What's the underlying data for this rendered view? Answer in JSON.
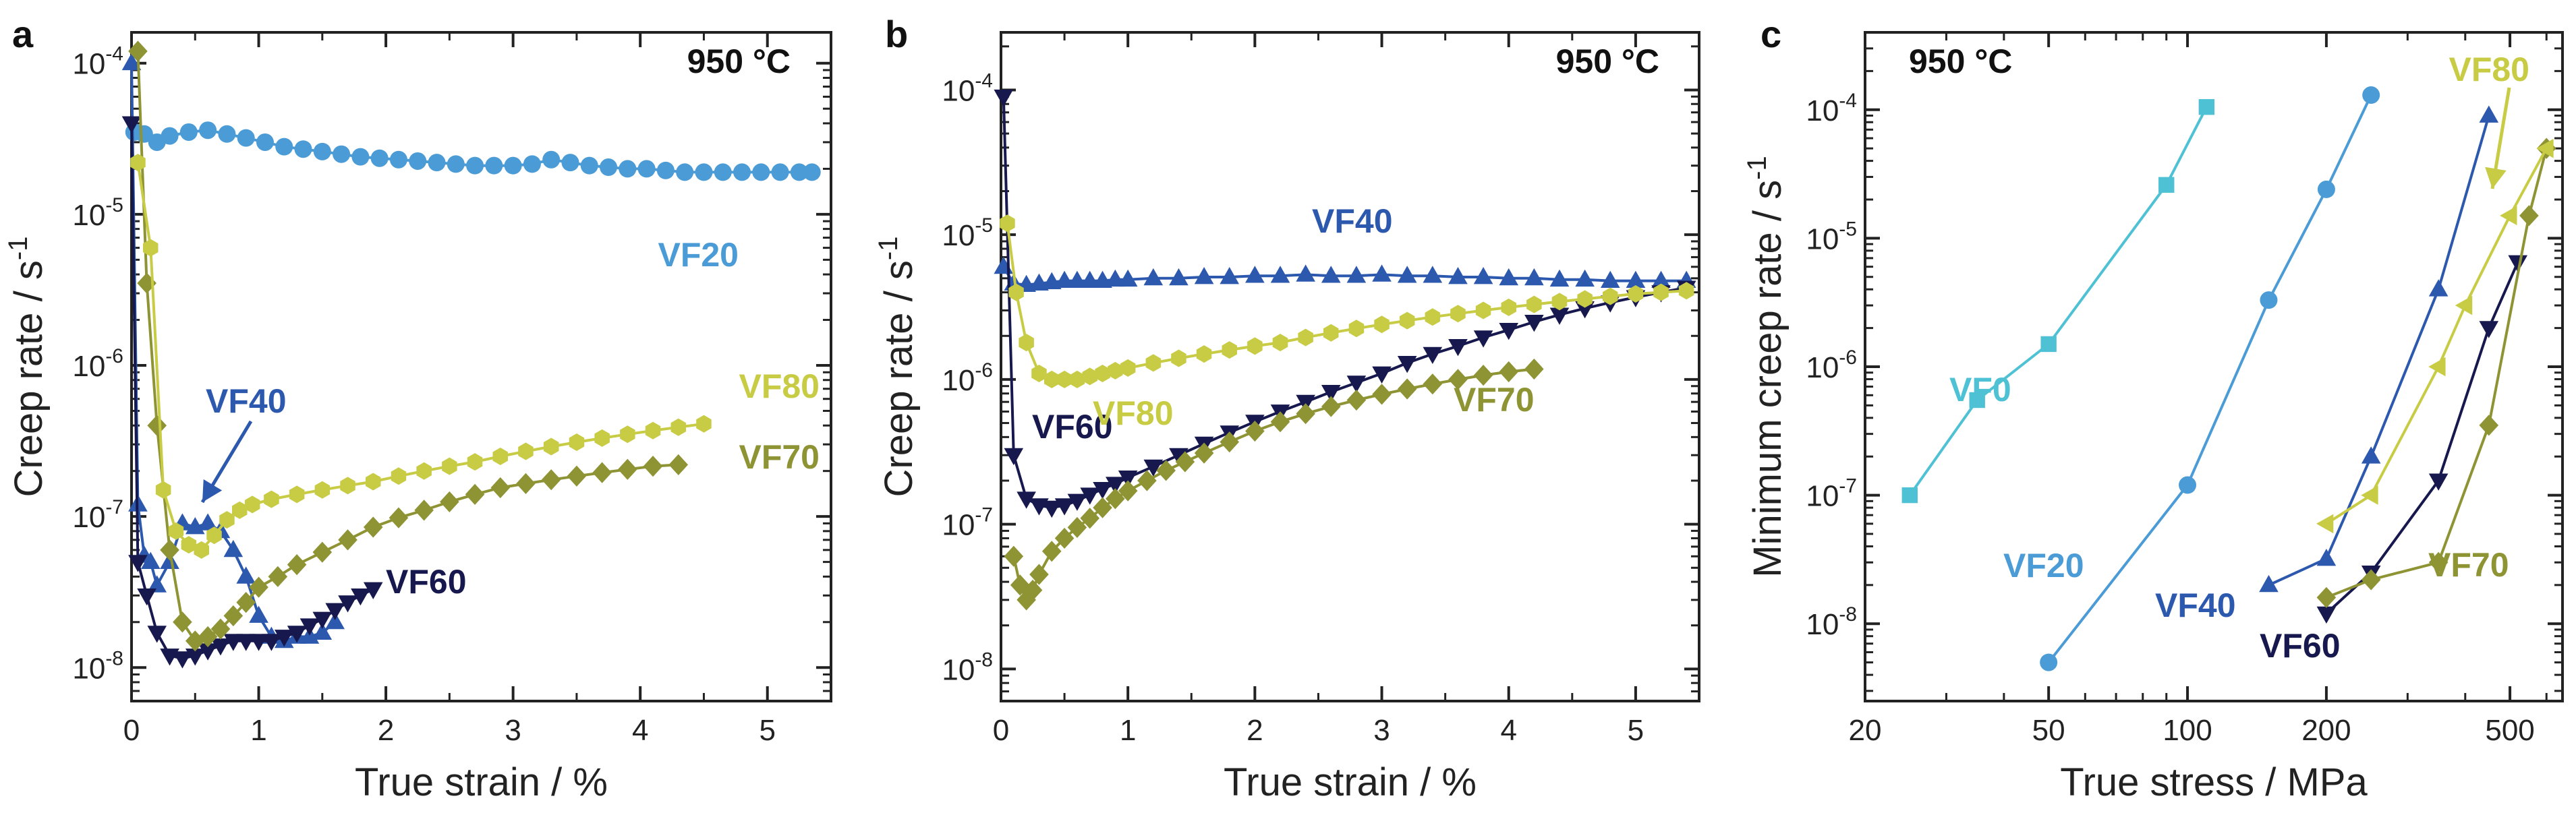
{
  "figure": {
    "panels": [
      "a",
      "b",
      "c"
    ],
    "temperature": "950 °C"
  },
  "colors": {
    "VF0": "#4FC1D4",
    "VF20": "#4A9BD6",
    "VF40": "#2C58AE",
    "VF60": "#17184E",
    "VF70": "#8E9333",
    "VF80": "#C8CB44"
  },
  "chart_data": [
    {
      "panel": "a",
      "type": "scatter",
      "annotation": "950 °C",
      "xlabel": "True strain / %",
      "ylabel": "Creep rate / s-1",
      "xlim": [
        0,
        5.5
      ],
      "ylim": [
        6e-09,
        0.00016
      ],
      "yscale": "log",
      "xticks": [
        "0",
        "1",
        "2",
        "3",
        "4",
        "5"
      ],
      "yticks": [
        "10-8",
        "10-7",
        "10-6",
        "10-5",
        "10-4"
      ],
      "series": [
        {
          "name": "VF20",
          "marker": "circle",
          "x": [
            0.02,
            0.1,
            0.2,
            0.3,
            0.45,
            0.6,
            0.75,
            0.9,
            1.05,
            1.2,
            1.35,
            1.5,
            1.65,
            1.8,
            1.95,
            2.1,
            2.25,
            2.4,
            2.55,
            2.7,
            2.85,
            3.0,
            3.15,
            3.3,
            3.45,
            3.6,
            3.75,
            3.9,
            4.05,
            4.2,
            4.35,
            4.5,
            4.65,
            4.8,
            4.95,
            5.1,
            5.25,
            5.35
          ],
          "y": [
            3.5e-05,
            3.4e-05,
            3e-05,
            3.3e-05,
            3.5e-05,
            3.6e-05,
            3.4e-05,
            3.2e-05,
            3e-05,
            2.8e-05,
            2.7e-05,
            2.6e-05,
            2.5e-05,
            2.4e-05,
            2.35e-05,
            2.3e-05,
            2.25e-05,
            2.2e-05,
            2.15e-05,
            2.1e-05,
            2.1e-05,
            2.1e-05,
            2.15e-05,
            2.3e-05,
            2.2e-05,
            2.1e-05,
            2.05e-05,
            2e-05,
            2e-05,
            1.95e-05,
            1.9e-05,
            1.9e-05,
            1.9e-05,
            1.9e-05,
            1.9e-05,
            1.9e-05,
            1.9e-05,
            1.9e-05
          ]
        },
        {
          "name": "VF40",
          "marker": "triangle-up",
          "x": [
            0.0,
            0.05,
            0.1,
            0.15,
            0.2,
            0.3,
            0.4,
            0.5,
            0.6,
            0.7,
            0.8,
            0.9,
            1.0,
            1.1,
            1.2,
            1.3,
            1.4,
            1.5,
            1.6
          ],
          "y": [
            0.0001,
            1.2e-07,
            5.5e-08,
            5e-08,
            3.5e-08,
            5e-08,
            9e-08,
            8.5e-08,
            9e-08,
            8e-08,
            6e-08,
            4e-08,
            2.2e-08,
            1.6e-08,
            1.5e-08,
            1.6e-08,
            1.6e-08,
            1.7e-08,
            2e-08
          ]
        },
        {
          "name": "VF60",
          "marker": "triangle-down",
          "x": [
            0.0,
            0.05,
            0.12,
            0.2,
            0.3,
            0.4,
            0.5,
            0.6,
            0.7,
            0.8,
            0.9,
            1.0,
            1.1,
            1.2,
            1.3,
            1.4,
            1.5,
            1.6,
            1.7,
            1.8,
            1.9
          ],
          "y": [
            4e-05,
            5e-08,
            3e-08,
            1.7e-08,
            1.2e-08,
            1.15e-08,
            1.2e-08,
            1.3e-08,
            1.4e-08,
            1.5e-08,
            1.5e-08,
            1.5e-08,
            1.5e-08,
            1.6e-08,
            1.7e-08,
            1.9e-08,
            2.1e-08,
            2.4e-08,
            2.7e-08,
            3e-08,
            3.3e-08
          ]
        },
        {
          "name": "VF70",
          "marker": "diamond",
          "x": [
            0.05,
            0.12,
            0.2,
            0.3,
            0.4,
            0.5,
            0.6,
            0.7,
            0.8,
            0.9,
            1.0,
            1.15,
            1.3,
            1.5,
            1.7,
            1.9,
            2.1,
            2.3,
            2.5,
            2.7,
            2.9,
            3.1,
            3.3,
            3.5,
            3.7,
            3.9,
            4.1,
            4.3
          ],
          "y": [
            0.00012,
            3.5e-06,
            4e-07,
            6e-08,
            2e-08,
            1.5e-08,
            1.6e-08,
            1.8e-08,
            2.2e-08,
            2.7e-08,
            3.4e-08,
            4e-08,
            4.8e-08,
            5.8e-08,
            7e-08,
            8.5e-08,
            9.8e-08,
            1.1e-07,
            1.25e-07,
            1.4e-07,
            1.55e-07,
            1.65e-07,
            1.75e-07,
            1.85e-07,
            1.95e-07,
            2.05e-07,
            2.15e-07,
            2.2e-07
          ]
        },
        {
          "name": "VF80",
          "marker": "hexagon",
          "x": [
            0.05,
            0.15,
            0.25,
            0.35,
            0.45,
            0.55,
            0.65,
            0.75,
            0.85,
            0.95,
            1.1,
            1.3,
            1.5,
            1.7,
            1.9,
            2.1,
            2.3,
            2.5,
            2.7,
            2.9,
            3.1,
            3.3,
            3.5,
            3.7,
            3.9,
            4.1,
            4.3,
            4.5
          ],
          "y": [
            2.2e-05,
            6e-06,
            1.5e-07,
            8e-08,
            6.5e-08,
            6e-08,
            7.5e-08,
            9.5e-08,
            1.1e-07,
            1.2e-07,
            1.3e-07,
            1.4e-07,
            1.5e-07,
            1.6e-07,
            1.7e-07,
            1.85e-07,
            2e-07,
            2.15e-07,
            2.3e-07,
            2.5e-07,
            2.7e-07,
            2.9e-07,
            3.1e-07,
            3.3e-07,
            3.5e-07,
            3.7e-07,
            3.9e-07,
            4.1e-07
          ]
        }
      ]
    },
    {
      "panel": "b",
      "type": "scatter",
      "annotation": "950 °C",
      "xlabel": "True strain / %",
      "ylabel": "Creep rate / s-1",
      "xlim": [
        0,
        5.5
      ],
      "ylim": [
        6e-09,
        0.00025
      ],
      "yscale": "log",
      "xticks": [
        "0",
        "1",
        "2",
        "3",
        "4",
        "5"
      ],
      "yticks": [
        "10-8",
        "10-7",
        "10-6",
        "10-5",
        "10-4"
      ],
      "series": [
        {
          "name": "VF40",
          "marker": "triangle-up",
          "x": [
            0.02,
            0.1,
            0.2,
            0.3,
            0.4,
            0.5,
            0.6,
            0.7,
            0.8,
            0.9,
            1.0,
            1.2,
            1.4,
            1.6,
            1.8,
            2.0,
            2.2,
            2.4,
            2.6,
            2.8,
            3.0,
            3.2,
            3.4,
            3.6,
            3.8,
            4.0,
            4.2,
            4.4,
            4.6,
            4.8,
            5.0,
            5.2,
            5.4
          ],
          "y": [
            6e-06,
            4.6e-06,
            4.5e-06,
            4.6e-06,
            4.7e-06,
            4.8e-06,
            4.8e-06,
            4.8e-06,
            4.8e-06,
            4.9e-06,
            4.9e-06,
            5e-06,
            5e-06,
            5.1e-06,
            5.1e-06,
            5.2e-06,
            5.2e-06,
            5.3e-06,
            5.2e-06,
            5.2e-06,
            5.3e-06,
            5.2e-06,
            5.2e-06,
            5.1e-06,
            5.1e-06,
            5e-06,
            5e-06,
            4.9e-06,
            4.9e-06,
            4.8e-06,
            4.8e-06,
            4.8e-06,
            4.8e-06
          ]
        },
        {
          "name": "VF60",
          "marker": "triangle-down",
          "x": [
            0.02,
            0.1,
            0.2,
            0.3,
            0.4,
            0.5,
            0.6,
            0.7,
            0.8,
            0.9,
            1.0,
            1.2,
            1.4,
            1.6,
            1.8,
            2.0,
            2.2,
            2.4,
            2.6,
            2.8,
            3.0,
            3.2,
            3.4,
            3.6,
            3.8,
            4.0,
            4.2,
            4.4,
            4.6,
            4.8,
            5.0,
            5.2,
            5.4
          ],
          "y": [
            9e-05,
            3e-07,
            1.5e-07,
            1.35e-07,
            1.3e-07,
            1.35e-07,
            1.45e-07,
            1.6e-07,
            1.75e-07,
            1.9e-07,
            2.1e-07,
            2.5e-07,
            3e-07,
            3.6e-07,
            4.3e-07,
            5.1e-07,
            6e-07,
            7e-07,
            8.2e-07,
            9.5e-07,
            1.1e-06,
            1.3e-06,
            1.5e-06,
            1.7e-06,
            1.95e-06,
            2.2e-06,
            2.5e-06,
            2.8e-06,
            3.1e-06,
            3.4e-06,
            3.7e-06,
            4e-06,
            4.3e-06
          ]
        },
        {
          "name": "VF70",
          "marker": "diamond",
          "x": [
            0.1,
            0.15,
            0.2,
            0.25,
            0.3,
            0.4,
            0.5,
            0.6,
            0.7,
            0.8,
            0.9,
            1.0,
            1.15,
            1.3,
            1.45,
            1.6,
            1.8,
            2.0,
            2.2,
            2.4,
            2.6,
            2.8,
            3.0,
            3.2,
            3.4,
            3.6,
            3.8,
            4.0,
            4.2
          ],
          "y": [
            6e-08,
            3.8e-08,
            3e-08,
            3.5e-08,
            4.5e-08,
            6.5e-08,
            8e-08,
            9.5e-08,
            1.1e-07,
            1.3e-07,
            1.5e-07,
            1.7e-07,
            2e-07,
            2.35e-07,
            2.7e-07,
            3.1e-07,
            3.7e-07,
            4.4e-07,
            5.1e-07,
            5.8e-07,
            6.5e-07,
            7.2e-07,
            7.9e-07,
            8.6e-07,
            9.3e-07,
            1e-06,
            1.07e-06,
            1.13e-06,
            1.18e-06
          ]
        },
        {
          "name": "VF80",
          "marker": "hexagon",
          "x": [
            0.05,
            0.12,
            0.2,
            0.3,
            0.4,
            0.5,
            0.6,
            0.7,
            0.8,
            0.9,
            1.0,
            1.2,
            1.4,
            1.6,
            1.8,
            2.0,
            2.2,
            2.4,
            2.6,
            2.8,
            3.0,
            3.2,
            3.4,
            3.6,
            3.8,
            4.0,
            4.2,
            4.4,
            4.6,
            4.8,
            5.0,
            5.2,
            5.4
          ],
          "y": [
            1.2e-05,
            4e-06,
            1.8e-06,
            1.1e-06,
            1e-06,
            1e-06,
            1e-06,
            1.05e-06,
            1.1e-06,
            1.15e-06,
            1.2e-06,
            1.3e-06,
            1.4e-06,
            1.5e-06,
            1.6e-06,
            1.7e-06,
            1.8e-06,
            1.95e-06,
            2.1e-06,
            2.25e-06,
            2.4e-06,
            2.55e-06,
            2.7e-06,
            2.85e-06,
            3e-06,
            3.15e-06,
            3.3e-06,
            3.45e-06,
            3.6e-06,
            3.75e-06,
            3.9e-06,
            4e-06,
            4.1e-06
          ]
        }
      ]
    },
    {
      "panel": "c",
      "type": "line",
      "annotation": "950 °C",
      "xlabel": "True stress / MPa",
      "ylabel": "Minimum creep rate / s-1",
      "xlim": [
        20,
        650
      ],
      "ylim": [
        2.5e-09,
        0.0004
      ],
      "xscale": "log",
      "yscale": "log",
      "xticks": [
        "20",
        "50",
        "100",
        "200",
        "500"
      ],
      "yticks": [
        "10-8",
        "10-7",
        "10-6",
        "10-5",
        "10-4"
      ],
      "series": [
        {
          "name": "VF0",
          "marker": "square",
          "x": [
            25,
            35,
            50,
            90,
            110
          ],
          "y": [
            1e-07,
            5.5e-07,
            1.5e-06,
            2.6e-05,
            0.000105
          ]
        },
        {
          "name": "VF20",
          "marker": "circle",
          "x": [
            50,
            100,
            150,
            200,
            250
          ],
          "y": [
            5e-09,
            1.2e-07,
            3.3e-06,
            2.4e-05,
            0.00013
          ]
        },
        {
          "name": "VF40",
          "marker": "triangle-up",
          "x": [
            150,
            200,
            250,
            350,
            450
          ],
          "y": [
            2e-08,
            3.2e-08,
            2e-07,
            4e-06,
            9e-05
          ]
        },
        {
          "name": "VF60",
          "marker": "triangle-down",
          "x": [
            200,
            250,
            350,
            450,
            520
          ],
          "y": [
            1.2e-08,
            2.5e-08,
            1.3e-07,
            2e-06,
            6.5e-06
          ]
        },
        {
          "name": "VF70",
          "marker": "diamond",
          "x": [
            200,
            250,
            350,
            450,
            550,
            600
          ],
          "y": [
            1.6e-08,
            2.2e-08,
            3e-08,
            3.5e-07,
            1.5e-05,
            5e-05
          ]
        },
        {
          "name": "VF80",
          "marker": "triangle-left",
          "x": [
            200,
            250,
            350,
            400,
            500,
            600
          ],
          "y": [
            6e-08,
            1e-07,
            1e-06,
            3e-06,
            1.5e-05,
            5e-05
          ]
        }
      ]
    }
  ]
}
